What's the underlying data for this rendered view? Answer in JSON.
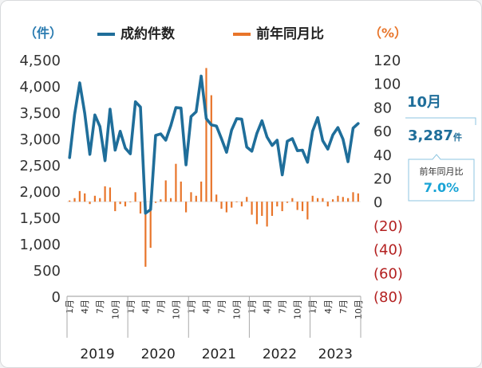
{
  "chart_data": {
    "type": "bar+line",
    "legend": [
      "成約件数",
      "前年同月比"
    ],
    "y_left": {
      "unit": "（件）",
      "ticks": [
        "4,500",
        "4,000",
        "3,500",
        "3,000",
        "2,500",
        "2,000",
        "1,500",
        "1,000",
        "500",
        "0"
      ],
      "range": [
        0,
        4500
      ]
    },
    "y_right": {
      "unit": "（%）",
      "ticks": [
        "120",
        "100",
        "80",
        "60",
        "40",
        "20",
        "0",
        "(20)",
        "(40)",
        "(60)",
        "(80)"
      ],
      "range": [
        -80,
        120
      ]
    },
    "x_month_labels": [
      "1月",
      "4月",
      "7月",
      "10月"
    ],
    "years": [
      "2019",
      "2020",
      "2021",
      "2022",
      "2023"
    ],
    "series": [
      {
        "name": "成約件数",
        "color": "#1f6e9a",
        "values": [
          2640,
          3460,
          4060,
          3480,
          2700,
          3450,
          3230,
          2580,
          3560,
          2780,
          3140,
          2820,
          2710,
          3700,
          3600,
          1580,
          1650,
          3060,
          3090,
          2970,
          3250,
          3590,
          3580,
          2500,
          3420,
          3510,
          4190,
          3380,
          3260,
          3240,
          3000,
          2740,
          3160,
          3380,
          3370,
          2840,
          2760,
          3100,
          3340,
          3030,
          2870,
          2970,
          2310,
          2950,
          3000,
          2770,
          2780,
          2550,
          3140,
          3400,
          2960,
          2800,
          3070,
          3210,
          2990,
          2560,
          3200,
          3287
        ]
      },
      {
        "name": "前年同月比",
        "color": "#e8752a",
        "values": [
          1,
          3,
          9,
          7,
          -2,
          5,
          3,
          13,
          12,
          -8,
          -2,
          -4,
          0,
          8,
          -10,
          -55,
          -39,
          -1,
          2,
          18,
          3,
          32,
          17,
          -9,
          8,
          5,
          17,
          113,
          90,
          6,
          -6,
          -9,
          -5,
          0,
          -4,
          4,
          -11,
          -19,
          -12,
          -21,
          -12,
          -4,
          -8,
          -1,
          3,
          -7,
          -8,
          -15,
          5,
          3,
          3,
          -4,
          2,
          5,
          4,
          3,
          8,
          7.0
        ]
      }
    ]
  },
  "callout": {
    "month": "10月",
    "value": "3,287",
    "value_unit": "件",
    "sub_label": "前年同月比",
    "pct": "7.0%"
  }
}
